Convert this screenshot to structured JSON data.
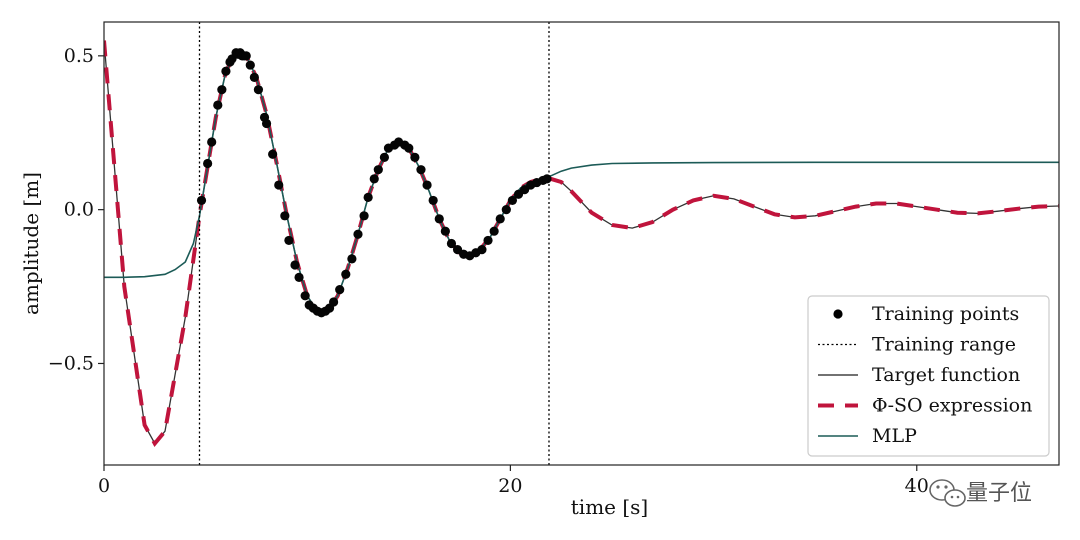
{
  "chart_data": {
    "type": "line",
    "xlabel": "time [s]",
    "ylabel": "amplitude [m]",
    "xlim": [
      0,
      47
    ],
    "ylim": [
      -0.83,
      0.61
    ],
    "x_ticks": [
      0,
      20,
      40
    ],
    "x_tick_labels": [
      "0",
      "20",
      "40"
    ],
    "y_ticks": [
      0.5,
      0.0,
      -0.5
    ],
    "y_tick_labels": [
      "0.5",
      "0.0",
      "−0.5"
    ],
    "grid": false,
    "legend_position": "bottom-right",
    "training_range": [
      4.7,
      21.9
    ],
    "legend": [
      {
        "label": "Training points",
        "style": "dot",
        "color": "#000000"
      },
      {
        "label": "Training range",
        "style": "dotted",
        "color": "#000000"
      },
      {
        "label": "Target function",
        "style": "solid",
        "color": "#444444"
      },
      {
        "label": "Φ-SO expression",
        "style": "dashed",
        "color": "#c0143c"
      },
      {
        "label": "MLP",
        "style": "solid",
        "color": "#1c5b57"
      }
    ],
    "series": [
      {
        "name": "Target function",
        "x": [
          0,
          1,
          2,
          2.5,
          3,
          4,
          4.7,
          5,
          5.5,
          6,
          6.5,
          7,
          7.5,
          8,
          8.5,
          9,
          9.5,
          10,
          10.5,
          11,
          11.5,
          12,
          12.5,
          13,
          13.5,
          14,
          14.5,
          15,
          15.5,
          16,
          16.5,
          17,
          17.5,
          18,
          18.5,
          19,
          19.5,
          20,
          20.5,
          21,
          21.5,
          22,
          22.5,
          23,
          24,
          25,
          26,
          27,
          28,
          29,
          30,
          31,
          32,
          33,
          34,
          35,
          36,
          37,
          38,
          39,
          40,
          41,
          42,
          43,
          44,
          45,
          46,
          47
        ],
        "y": [
          0.55,
          -0.25,
          -0.7,
          -0.76,
          -0.72,
          -0.35,
          -0.02,
          0.1,
          0.3,
          0.45,
          0.51,
          0.5,
          0.43,
          0.31,
          0.15,
          -0.02,
          -0.17,
          -0.28,
          -0.33,
          -0.33,
          -0.28,
          -0.19,
          -0.08,
          0.04,
          0.13,
          0.2,
          0.22,
          0.2,
          0.14,
          0.06,
          -0.03,
          -0.1,
          -0.14,
          -0.15,
          -0.13,
          -0.09,
          -0.03,
          0.03,
          0.07,
          0.09,
          0.1,
          0.1,
          0.09,
          0.06,
          -0.01,
          -0.05,
          -0.06,
          -0.04,
          0.0,
          0.03,
          0.045,
          0.035,
          0.01,
          -0.015,
          -0.025,
          -0.02,
          -0.005,
          0.01,
          0.02,
          0.02,
          0.01,
          0.0,
          -0.01,
          -0.012,
          -0.005,
          0.003,
          0.01,
          0.012
        ]
      },
      {
        "name": "Φ-SO expression",
        "x": [
          0,
          1,
          2,
          2.5,
          3,
          4,
          4.7,
          5,
          5.5,
          6,
          6.5,
          7,
          7.5,
          8,
          8.5,
          9,
          9.5,
          10,
          10.5,
          11,
          11.5,
          12,
          12.5,
          13,
          13.5,
          14,
          14.5,
          15,
          15.5,
          16,
          16.5,
          17,
          17.5,
          18,
          18.5,
          19,
          19.5,
          20,
          20.5,
          21,
          21.5,
          22,
          22.5,
          23,
          24,
          25,
          26,
          27,
          28,
          29,
          30,
          31,
          32,
          33,
          34,
          35,
          36,
          37,
          38,
          39,
          40,
          41,
          42,
          43,
          44,
          45,
          46,
          47
        ],
        "y": [
          0.55,
          -0.25,
          -0.7,
          -0.76,
          -0.72,
          -0.35,
          -0.02,
          0.1,
          0.3,
          0.45,
          0.51,
          0.5,
          0.43,
          0.31,
          0.15,
          -0.02,
          -0.17,
          -0.28,
          -0.33,
          -0.33,
          -0.28,
          -0.19,
          -0.08,
          0.04,
          0.13,
          0.2,
          0.22,
          0.2,
          0.14,
          0.06,
          -0.03,
          -0.1,
          -0.14,
          -0.15,
          -0.13,
          -0.09,
          -0.03,
          0.03,
          0.07,
          0.09,
          0.1,
          0.1,
          0.09,
          0.06,
          -0.01,
          -0.05,
          -0.06,
          -0.04,
          0.0,
          0.03,
          0.045,
          0.035,
          0.01,
          -0.015,
          -0.025,
          -0.02,
          -0.005,
          0.01,
          0.02,
          0.02,
          0.01,
          0.0,
          -0.01,
          -0.012,
          -0.005,
          0.003,
          0.01,
          0.012
        ]
      },
      {
        "name": "MLP",
        "x": [
          0,
          1,
          2,
          3,
          3.5,
          4,
          4.4,
          4.7,
          5,
          5.5,
          6,
          6.5,
          7,
          7.5,
          8,
          8.5,
          9,
          9.5,
          10,
          10.5,
          11,
          11.5,
          12,
          12.5,
          13,
          13.5,
          14,
          14.5,
          15,
          15.5,
          16,
          16.5,
          17,
          17.5,
          18,
          18.5,
          19,
          19.5,
          20,
          20.5,
          21,
          21.5,
          22,
          22.5,
          23,
          24,
          25,
          27,
          30,
          35,
          40,
          47
        ],
        "y": [
          -0.22,
          -0.22,
          -0.218,
          -0.21,
          -0.195,
          -0.17,
          -0.11,
          -0.02,
          0.1,
          0.3,
          0.45,
          0.51,
          0.5,
          0.43,
          0.31,
          0.15,
          -0.02,
          -0.17,
          -0.28,
          -0.33,
          -0.33,
          -0.28,
          -0.19,
          -0.08,
          0.04,
          0.13,
          0.2,
          0.22,
          0.2,
          0.14,
          0.06,
          -0.03,
          -0.1,
          -0.14,
          -0.15,
          -0.13,
          -0.09,
          -0.03,
          0.03,
          0.07,
          0.09,
          0.1,
          0.11,
          0.125,
          0.135,
          0.145,
          0.15,
          0.152,
          0.153,
          0.154,
          0.154,
          0.154
        ]
      },
      {
        "name": "Training points",
        "x": [
          4.8,
          5.1,
          5.3,
          5.6,
          5.8,
          6.0,
          6.2,
          6.3,
          6.5,
          6.6,
          6.7,
          6.8,
          6.9,
          7.0,
          7.2,
          7.4,
          7.6,
          7.9,
          8.0,
          8.3,
          8.6,
          8.9,
          9.1,
          9.4,
          9.6,
          9.9,
          10.1,
          10.3,
          10.5,
          10.7,
          10.9,
          11.1,
          11.3,
          11.6,
          11.9,
          12.2,
          12.5,
          12.8,
          13.0,
          13.3,
          13.5,
          13.8,
          14.0,
          14.3,
          14.5,
          14.8,
          15.0,
          15.3,
          15.6,
          15.9,
          16.2,
          16.5,
          16.8,
          17.1,
          17.4,
          17.7,
          18.0,
          18.3,
          18.6,
          18.9,
          19.2,
          19.5,
          19.8,
          20.1,
          20.4,
          20.7,
          21.0,
          21.3,
          21.6,
          21.8
        ],
        "y": [
          0.03,
          0.15,
          0.22,
          0.34,
          0.39,
          0.45,
          0.48,
          0.49,
          0.51,
          0.505,
          0.51,
          0.5,
          0.5,
          0.5,
          0.47,
          0.43,
          0.39,
          0.3,
          0.28,
          0.18,
          0.08,
          -0.02,
          -0.1,
          -0.18,
          -0.22,
          -0.28,
          -0.31,
          -0.32,
          -0.33,
          -0.335,
          -0.33,
          -0.32,
          -0.3,
          -0.26,
          -0.21,
          -0.16,
          -0.08,
          -0.02,
          0.04,
          0.1,
          0.13,
          0.17,
          0.2,
          0.21,
          0.22,
          0.21,
          0.2,
          0.17,
          0.13,
          0.08,
          0.03,
          -0.03,
          -0.07,
          -0.11,
          -0.13,
          -0.145,
          -0.15,
          -0.14,
          -0.13,
          -0.1,
          -0.07,
          -0.03,
          0.0,
          0.03,
          0.05,
          0.065,
          0.08,
          0.088,
          0.095,
          0.1
        ]
      }
    ]
  },
  "watermark": {
    "label": "量子位",
    "icon": "wechat-icon"
  }
}
